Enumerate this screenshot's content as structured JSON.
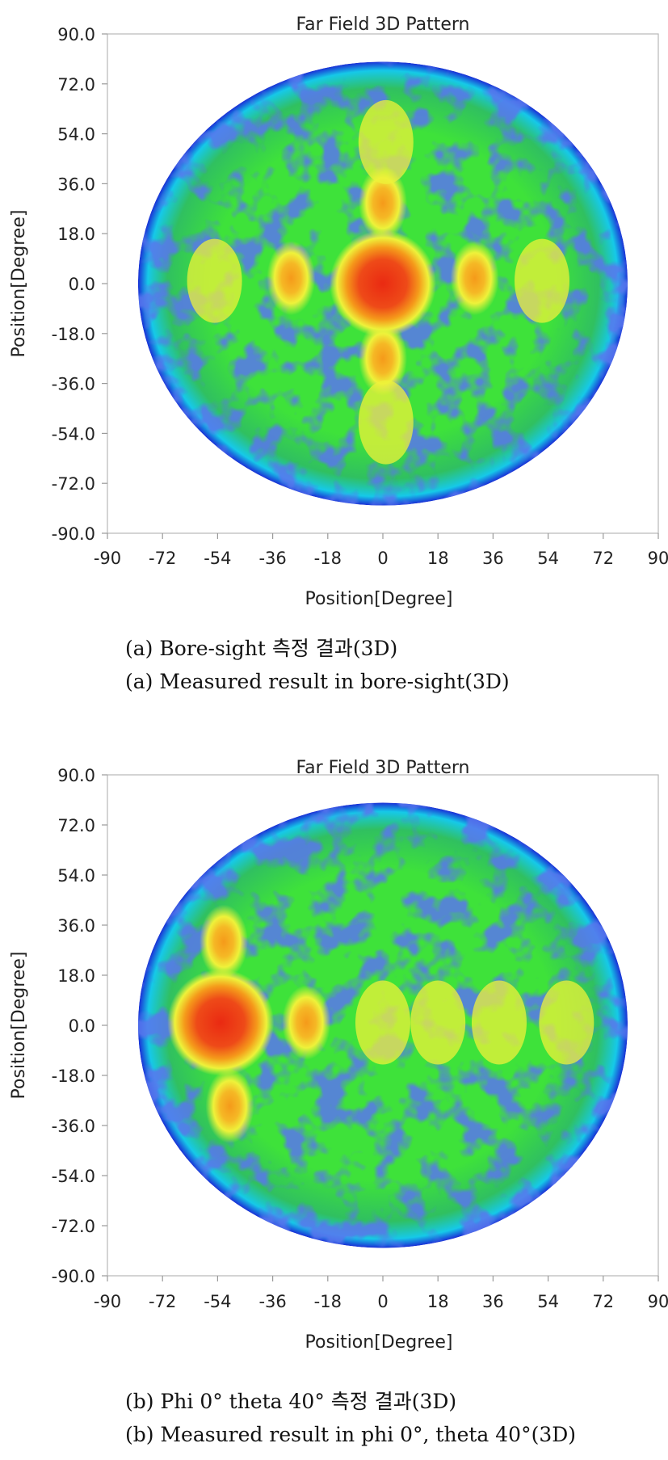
{
  "chart_data": [
    {
      "type": "heatmap",
      "title": "Far Field 3D Pattern",
      "xlabel": "Position[Degree]",
      "ylabel": "Position[Degree]",
      "x_ticks": [
        "-90",
        "-72",
        "-54",
        "-36",
        "-18",
        "0",
        "18",
        "36",
        "54",
        "72",
        "90"
      ],
      "y_ticks": [
        "90.0",
        "72.0",
        "54.0",
        "36.0",
        "18.0",
        "0.0",
        "-18.0",
        "-36.0",
        "-54.0",
        "-72.0",
        "-90.0"
      ],
      "xlim": [
        -90,
        90
      ],
      "ylim": [
        -90,
        90
      ],
      "pattern_radius_deg": 80,
      "main_beam": {
        "x": 0,
        "y": 0
      },
      "side_lobes": [
        {
          "x": -30,
          "y": 2
        },
        {
          "x": 30,
          "y": 2
        },
        {
          "x": 0,
          "y": 29
        },
        {
          "x": 0,
          "y": -27
        },
        {
          "x": -55,
          "y": 1
        },
        {
          "x": 52,
          "y": 1
        },
        {
          "x": 1,
          "y": 51
        },
        {
          "x": 1,
          "y": -50
        }
      ],
      "colormap": [
        "#1a2fd6",
        "#16c9e8",
        "#3ee23a",
        "#eef23a",
        "#f59a1a",
        "#ea2a12"
      ],
      "captions": [
        "(a) Bore-sight 측정 결과(3D)",
        "(a) Measured result in bore-sight(3D)"
      ]
    },
    {
      "type": "heatmap",
      "title": "Far Field 3D Pattern",
      "xlabel": "Position[Degree]",
      "ylabel": "Position[Degree]",
      "x_ticks": [
        "-90",
        "-72",
        "-54",
        "-36",
        "-18",
        "0",
        "18",
        "36",
        "54",
        "72",
        "90"
      ],
      "y_ticks": [
        "90.0",
        "72.0",
        "54.0",
        "36.0",
        "18.0",
        "0.0",
        "-18.0",
        "-36.0",
        "-54.0",
        "-72.0",
        "-90.0"
      ],
      "xlim": [
        -90,
        90
      ],
      "ylim": [
        -90,
        90
      ],
      "pattern_radius_deg": 80,
      "main_beam": {
        "x": -53,
        "y": 1
      },
      "side_lobes": [
        {
          "x": -25,
          "y": 1
        },
        {
          "x": -50,
          "y": -29
        },
        {
          "x": -52,
          "y": 30
        },
        {
          "x": 0,
          "y": 1
        },
        {
          "x": 18,
          "y": 1
        },
        {
          "x": 38,
          "y": 1
        },
        {
          "x": 60,
          "y": 1
        }
      ],
      "colormap": [
        "#1a2fd6",
        "#16c9e8",
        "#3ee23a",
        "#eef23a",
        "#f59a1a",
        "#ea2a12"
      ],
      "captions": [
        "(b) Phi 0° theta 40° 측정 결과(3D)",
        "(b) Measured result in phi 0°, theta 40°(3D)"
      ]
    }
  ]
}
